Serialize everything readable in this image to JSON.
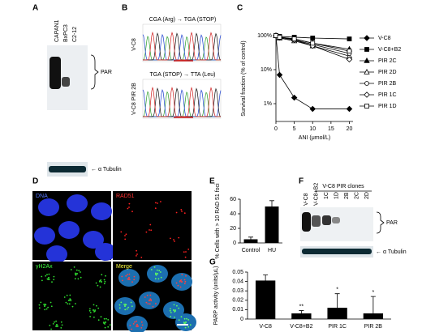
{
  "panels": {
    "a": {
      "letter": "A",
      "lanes": [
        "CAPAN1",
        "BxPC3",
        "C2-12"
      ],
      "band_labels": [
        "PAR",
        "← α Tubulin"
      ]
    },
    "b": {
      "letter": "B",
      "top": {
        "mutation": "CGA (Arg) → TGA (STOP)",
        "sample": "V-C8"
      },
      "bottom": {
        "mutation": "TGA (STOP) → TTA (Leu)",
        "sample": "V-C8 PIR 2B"
      }
    },
    "c": {
      "letter": "C"
    },
    "d": {
      "letter": "D",
      "channels": [
        "DNA",
        "RAD51",
        "γH2Ax",
        "Merge"
      ]
    },
    "e": {
      "letter": "E"
    },
    "f": {
      "letter": "F",
      "group": "V-C8 PIR clones",
      "lanes": [
        "V-C8",
        "V-C8+B2",
        "1C",
        "1D",
        "2B",
        "2C",
        "2D"
      ],
      "band_labels": [
        "PAR",
        "← α Tubulin"
      ]
    },
    "g": {
      "letter": "G"
    }
  },
  "chart_data": [
    {
      "type": "line",
      "yscale": "log",
      "x_label": "ANI (μmol/L)",
      "y_label": "Survival fraction (% of control)",
      "x": [
        0,
        1,
        5,
        10,
        20
      ],
      "xlim": [
        0,
        21
      ],
      "xticks": [
        0,
        5,
        10,
        15,
        20
      ],
      "ylim": [
        0.3,
        100
      ],
      "yticks": [
        {
          "value": 1,
          "label": "1%"
        },
        {
          "value": 10,
          "label": "10%"
        },
        {
          "value": 100,
          "label": "100%"
        }
      ],
      "series": [
        {
          "name": "V-C8",
          "color": "#000000",
          "marker": "diamond",
          "filled": true,
          "values": [
            100,
            7,
            1.5,
            0.7,
            0.7
          ]
        },
        {
          "name": "V-C8+B2",
          "color": "#000000",
          "marker": "square",
          "filled": true,
          "values": [
            100,
            95,
            90,
            85,
            80
          ]
        },
        {
          "name": "PIR 2C",
          "color": "#000000",
          "marker": "triangle",
          "filled": true,
          "values": [
            100,
            90,
            80,
            60,
            40
          ]
        },
        {
          "name": "PIR 2D",
          "color": "#000000",
          "marker": "triangle",
          "filled": false,
          "values": [
            100,
            85,
            70,
            50,
            25
          ]
        },
        {
          "name": "PIR 2B",
          "color": "#000000",
          "marker": "circle",
          "filled": false,
          "values": [
            100,
            90,
            75,
            55,
            30
          ]
        },
        {
          "name": "PIR 1C",
          "color": "#000000",
          "marker": "diamond",
          "filled": false,
          "values": [
            100,
            88,
            75,
            50,
            20
          ]
        },
        {
          "name": "PIR 1D",
          "color": "#000000",
          "marker": "square",
          "filled": false,
          "values": [
            100,
            90,
            80,
            60,
            35
          ]
        }
      ]
    },
    {
      "type": "bar",
      "y_label": "% Cells with > 10 RAD 51 foci",
      "categories": [
        "Control",
        "HU"
      ],
      "values": [
        5,
        50
      ],
      "errors": [
        3,
        8
      ],
      "color": "#000000",
      "ylim": [
        0,
        60
      ],
      "yticks": [
        0,
        20,
        40,
        60
      ]
    },
    {
      "type": "bar",
      "y_label": "PARP activity (units/μL)",
      "categories": [
        "V-C8",
        "V-C8+B2",
        "PIR 1C",
        "PIR 2B"
      ],
      "values": [
        0.041,
        0.006,
        0.012,
        0.006
      ],
      "errors": [
        0.006,
        0.003,
        0.015,
        0.018
      ],
      "annotations": [
        null,
        "**",
        "*",
        "*"
      ],
      "color": "#000000",
      "ylim": [
        0,
        0.05
      ],
      "yticks": [
        0,
        0.01,
        0.02,
        0.03,
        0.04,
        0.05
      ]
    }
  ]
}
